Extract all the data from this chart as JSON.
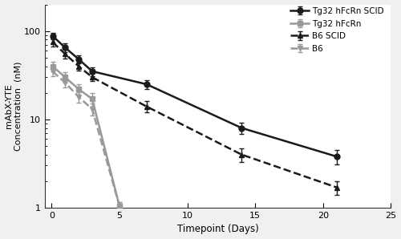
{
  "title": "",
  "xlabel": "Timepoint (Days)",
  "ylabel": "mAbX-YTE\nConcentration  (nM)",
  "xlim": [
    -0.5,
    25
  ],
  "ylim": [
    1,
    200
  ],
  "background_color": "#f0f0f0",
  "plot_bg": "#ffffff",
  "series": [
    {
      "label": "Tg32 hFcRn SCID",
      "color": "#1a1a1a",
      "linestyle": "solid",
      "marker": "o",
      "markersize": 5,
      "linewidth": 1.8,
      "x": [
        0.08,
        1,
        2,
        3,
        7,
        14,
        21
      ],
      "y": [
        88,
        65,
        48,
        35,
        25,
        8.0,
        3.8
      ],
      "yerr": [
        8,
        7,
        5,
        4,
        3,
        1.2,
        0.7
      ]
    },
    {
      "label": "Tg32 hFcRn",
      "color": "#999999",
      "linestyle": "solid",
      "marker": "s",
      "markersize": 5,
      "linewidth": 1.8,
      "x": [
        0.08,
        1,
        2,
        3,
        5
      ],
      "y": [
        40,
        30,
        22,
        17,
        1.05
      ],
      "yerr": [
        5,
        4,
        3,
        3,
        0.1
      ]
    },
    {
      "label": "B6 SCID",
      "color": "#1a1a1a",
      "linestyle": "dashed",
      "marker": "^",
      "markersize": 5,
      "linewidth": 1.8,
      "x": [
        0.08,
        1,
        2,
        3,
        7,
        14,
        21
      ],
      "y": [
        75,
        55,
        40,
        30,
        14,
        4.0,
        1.7
      ],
      "yerr": [
        8,
        6,
        4,
        3,
        2,
        0.7,
        0.3
      ]
    },
    {
      "label": "B6",
      "color": "#999999",
      "linestyle": "dashed",
      "marker": "v",
      "markersize": 5,
      "linewidth": 1.8,
      "x": [
        0.08,
        1,
        2,
        3,
        5
      ],
      "y": [
        35,
        26,
        18,
        13,
        1.05
      ],
      "yerr": [
        4,
        3,
        2.5,
        2,
        0.1
      ]
    }
  ],
  "legend_labels": [
    "Tg32 hFcRn SCID",
    "Tg32 hFcRn",
    "B6 SCID",
    "B6"
  ],
  "xticks": [
    0,
    5,
    10,
    15,
    20,
    25
  ],
  "xtick_labels": [
    "0",
    "5",
    "10",
    "15",
    "20",
    "25"
  ],
  "yticks": [
    1,
    10,
    100
  ],
  "ytick_labels": [
    "1",
    "10",
    "100"
  ]
}
